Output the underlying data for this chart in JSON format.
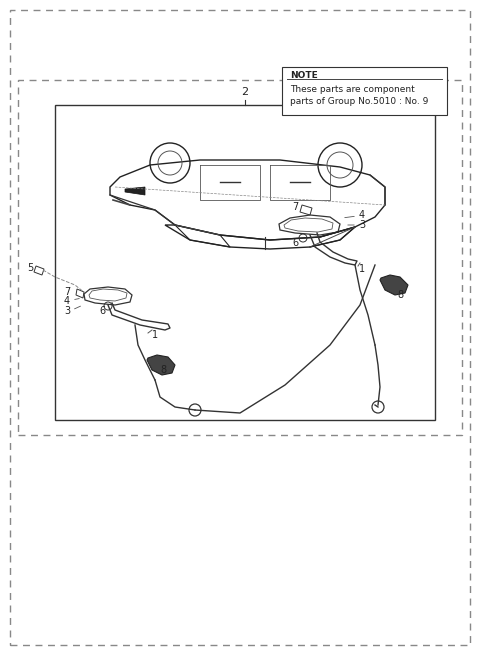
{
  "bg_color": "#ffffff",
  "outer_border_color": "#888888",
  "inner_border_color": "#333333",
  "note_text_line1": "NOTE",
  "note_text_line2": "These parts are component",
  "note_text_line3": "parts of Group No.5010 : No. 9",
  "part_labels": [
    "1",
    "2",
    "3",
    "4",
    "5",
    "6",
    "7",
    "8"
  ],
  "diagram_title": "2",
  "car_image": true
}
